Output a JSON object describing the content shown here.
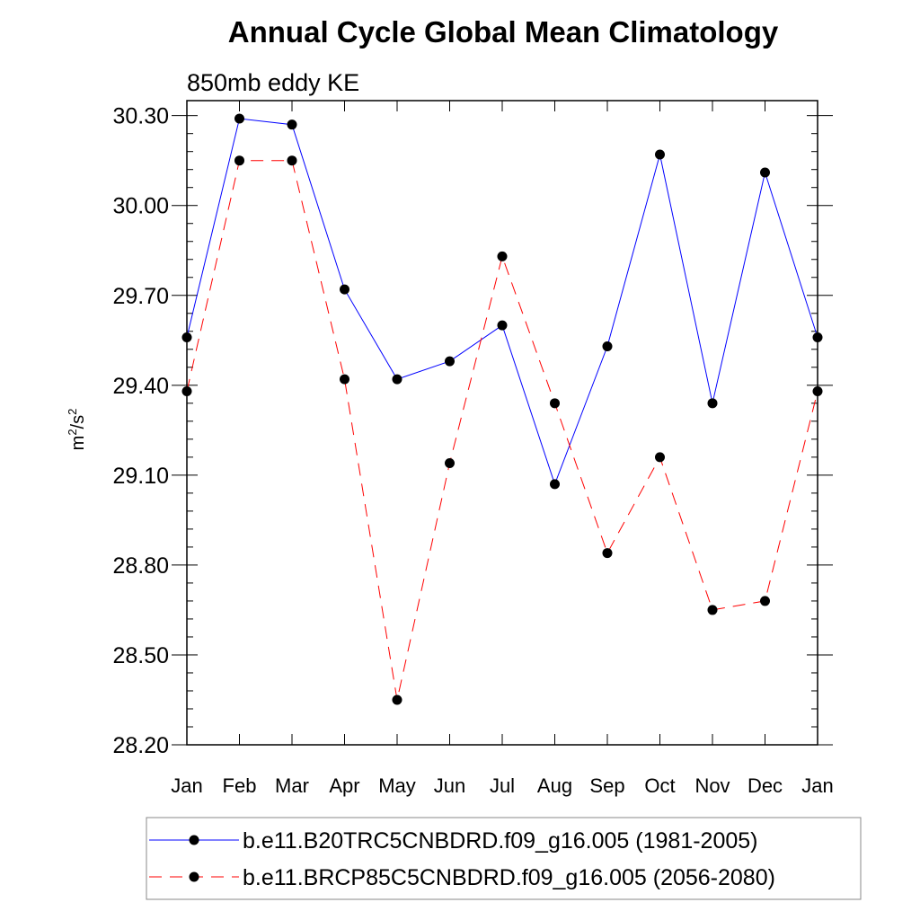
{
  "chart_data": {
    "type": "line",
    "title": "Annual Cycle Global Mean Climatology",
    "subtitle": "850mb eddy KE",
    "ylabel": {
      "base": "m",
      "sup1": "2",
      "mid": "/s",
      "sup2": "2"
    },
    "categories": [
      "Jan",
      "Feb",
      "Mar",
      "Apr",
      "May",
      "Jun",
      "Jul",
      "Aug",
      "Sep",
      "Oct",
      "Nov",
      "Dec",
      "Jan"
    ],
    "ylim": [
      28.2,
      30.35
    ],
    "yticks": [
      28.2,
      28.5,
      28.8,
      29.1,
      29.4,
      29.7,
      30.0,
      30.3
    ],
    "ytick_labels": [
      "28.20",
      "28.50",
      "28.80",
      "29.10",
      "29.40",
      "29.70",
      "30.00",
      "30.30"
    ],
    "grid": false,
    "legend_position": "bottom",
    "series": [
      {
        "name": "b.e11.B20TRC5CNBDRD.f09_g16.005 (1981-2005)",
        "color": "#0000ff",
        "dash": "solid",
        "values": [
          29.56,
          30.29,
          30.27,
          29.72,
          29.42,
          29.48,
          29.6,
          29.07,
          29.53,
          30.17,
          29.34,
          30.11,
          29.56
        ]
      },
      {
        "name": "b.e11.BRCP85C5CNBDRD.f09_g16.005 (2056-2080)",
        "color": "#ff0000",
        "dash": "dashed",
        "values": [
          29.38,
          30.15,
          30.15,
          29.42,
          28.35,
          29.14,
          29.83,
          29.34,
          28.84,
          29.16,
          28.65,
          28.68,
          29.38
        ]
      }
    ]
  }
}
